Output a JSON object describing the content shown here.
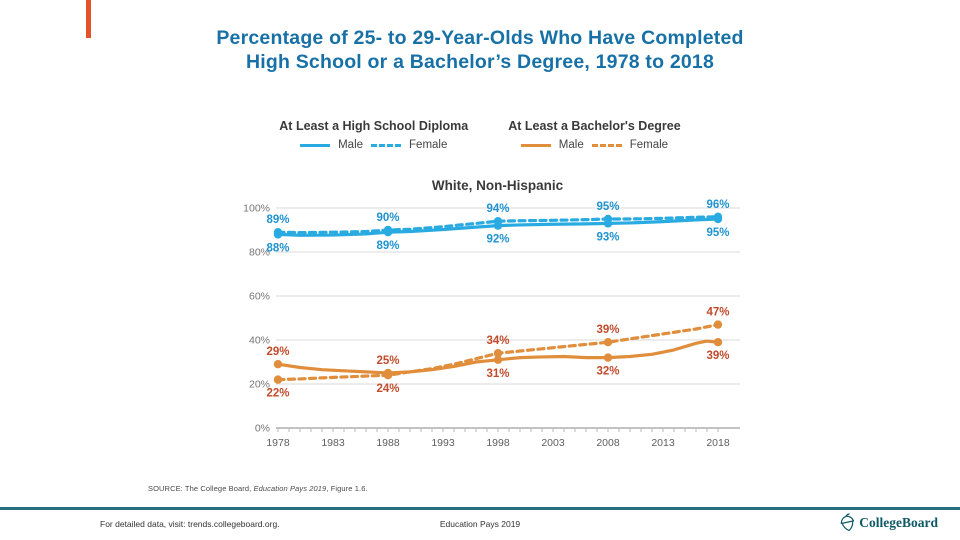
{
  "accent_color": "#E4512B",
  "title": {
    "line1": "Percentage of 25- to 29-Year-Olds Who Have Completed",
    "line2": "High School or a Bachelor’s Degree, 1978 to 2018",
    "color": "#1771A6"
  },
  "legend": {
    "groups": [
      {
        "title": "At Least a High School Diploma",
        "color": "#29ABE2",
        "items": [
          {
            "label": "Male",
            "style": "solid"
          },
          {
            "label": "Female",
            "style": "dashed"
          }
        ]
      },
      {
        "title": "At Least a Bachelor's Degree",
        "color": "#E08E3C",
        "items": [
          {
            "label": "Male",
            "style": "solid"
          },
          {
            "label": "Female",
            "style": "dashed"
          }
        ]
      }
    ]
  },
  "chart_data": {
    "type": "line",
    "title": "White, Non-Hispanic",
    "x_axis": {
      "min": 1978,
      "max": 2018,
      "tick_every": 1,
      "label_every": 5,
      "labels": [
        1978,
        1983,
        1988,
        1993,
        1998,
        2003,
        2008,
        2013,
        2018
      ]
    },
    "y_axis": {
      "min": 0,
      "max": 100,
      "gridlines": [
        100,
        80,
        60,
        40,
        20,
        0
      ],
      "tick_labels": [
        "100%",
        "80%",
        "60%",
        "40%",
        "20%",
        "0%"
      ]
    },
    "marker_years": [
      1978,
      1988,
      1998,
      2008,
      2018
    ],
    "series": [
      {
        "id": "hs-male",
        "name": "At Least a High School Diploma - Male",
        "color": "#29ABE2",
        "dash": false,
        "points": [
          [
            1978,
            88
          ],
          [
            1980,
            87.6
          ],
          [
            1983,
            87.7
          ],
          [
            1986,
            88.2
          ],
          [
            1988,
            89
          ],
          [
            1990,
            89.3
          ],
          [
            1993,
            90.2
          ],
          [
            1996,
            91.3
          ],
          [
            1998,
            92
          ],
          [
            2000,
            92.3
          ],
          [
            2003,
            92.6
          ],
          [
            2006,
            92.8
          ],
          [
            2008,
            93
          ],
          [
            2010,
            93.2
          ],
          [
            2013,
            93.8
          ],
          [
            2016,
            94.6
          ],
          [
            2018,
            95
          ]
        ]
      },
      {
        "id": "hs-female",
        "name": "At Least a High School Diploma - Female",
        "color": "#29ABE2",
        "dash": true,
        "points": [
          [
            1978,
            89
          ],
          [
            1980,
            88.8
          ],
          [
            1983,
            89
          ],
          [
            1986,
            89.3
          ],
          [
            1988,
            90
          ],
          [
            1990,
            90.3
          ],
          [
            1993,
            91.5
          ],
          [
            1996,
            93
          ],
          [
            1998,
            94
          ],
          [
            2000,
            94.2
          ],
          [
            2003,
            94.4
          ],
          [
            2006,
            94.7
          ],
          [
            2008,
            95
          ],
          [
            2010,
            95
          ],
          [
            2013,
            95.3
          ],
          [
            2016,
            95.8
          ],
          [
            2018,
            96
          ]
        ]
      },
      {
        "id": "ba-male",
        "name": "At Least a Bachelor's Degree - Male",
        "color": "#E08E3C",
        "dash": false,
        "points": [
          [
            1978,
            29
          ],
          [
            1980,
            27.5
          ],
          [
            1982,
            26.5
          ],
          [
            1984,
            26
          ],
          [
            1986,
            25.5
          ],
          [
            1988,
            25
          ],
          [
            1990,
            25.5
          ],
          [
            1992,
            26.5
          ],
          [
            1994,
            28
          ],
          [
            1996,
            30
          ],
          [
            1998,
            31
          ],
          [
            2000,
            32
          ],
          [
            2002,
            32.3
          ],
          [
            2004,
            32.5
          ],
          [
            2006,
            32
          ],
          [
            2008,
            32
          ],
          [
            2010,
            32.5
          ],
          [
            2012,
            33.5
          ],
          [
            2014,
            35.5
          ],
          [
            2016,
            38.5
          ],
          [
            2017,
            39.5
          ],
          [
            2018,
            39
          ]
        ]
      },
      {
        "id": "ba-female",
        "name": "At Least a Bachelor's Degree - Female",
        "color": "#E08E3C",
        "dash": true,
        "points": [
          [
            1978,
            22
          ],
          [
            1980,
            22.3
          ],
          [
            1982,
            22.8
          ],
          [
            1984,
            23.2
          ],
          [
            1986,
            23.6
          ],
          [
            1988,
            24
          ],
          [
            1990,
            25.5
          ],
          [
            1992,
            27
          ],
          [
            1994,
            29
          ],
          [
            1996,
            31.5
          ],
          [
            1998,
            34
          ],
          [
            2000,
            35
          ],
          [
            2002,
            36
          ],
          [
            2004,
            37
          ],
          [
            2006,
            38
          ],
          [
            2008,
            39
          ],
          [
            2010,
            40.5
          ],
          [
            2012,
            42
          ],
          [
            2014,
            43.5
          ],
          [
            2016,
            45
          ],
          [
            2018,
            47
          ]
        ]
      }
    ],
    "labels": [
      {
        "year": 1978,
        "value": 89,
        "text": "89%",
        "placement": "above",
        "color": "#1E93CF"
      },
      {
        "year": 1978,
        "value": 88,
        "text": "88%",
        "placement": "below",
        "color": "#1E93CF"
      },
      {
        "year": 1988,
        "value": 90,
        "text": "90%",
        "placement": "above",
        "color": "#1E93CF"
      },
      {
        "year": 1988,
        "value": 89,
        "text": "89%",
        "placement": "below",
        "color": "#1E93CF"
      },
      {
        "year": 1998,
        "value": 94,
        "text": "94%",
        "placement": "above",
        "color": "#1E93CF"
      },
      {
        "year": 1998,
        "value": 92,
        "text": "92%",
        "placement": "below",
        "color": "#1E93CF"
      },
      {
        "year": 2008,
        "value": 95,
        "text": "95%",
        "placement": "above",
        "color": "#1E93CF"
      },
      {
        "year": 2008,
        "value": 93,
        "text": "93%",
        "placement": "below",
        "color": "#1E93CF"
      },
      {
        "year": 2018,
        "value": 96,
        "text": "96%",
        "placement": "above",
        "color": "#1E93CF"
      },
      {
        "year": 2018,
        "value": 95,
        "text": "95%",
        "placement": "below",
        "color": "#1E93CF"
      },
      {
        "year": 1978,
        "value": 29,
        "text": "29%",
        "placement": "above",
        "color": "#C24B2C"
      },
      {
        "year": 1978,
        "value": 22,
        "text": "22%",
        "placement": "below",
        "color": "#C24B2C"
      },
      {
        "year": 1988,
        "value": 25,
        "text": "25%",
        "placement": "above",
        "color": "#C24B2C"
      },
      {
        "year": 1988,
        "value": 24,
        "text": "24%",
        "placement": "below",
        "color": "#C24B2C"
      },
      {
        "year": 1998,
        "value": 34,
        "text": "34%",
        "placement": "above",
        "color": "#C24B2C"
      },
      {
        "year": 1998,
        "value": 31,
        "text": "31%",
        "placement": "below",
        "color": "#C24B2C"
      },
      {
        "year": 2008,
        "value": 39,
        "text": "39%",
        "placement": "above",
        "color": "#C24B2C"
      },
      {
        "year": 2008,
        "value": 32,
        "text": "32%",
        "placement": "below",
        "color": "#C24B2C"
      },
      {
        "year": 2018,
        "value": 47,
        "text": "47%",
        "placement": "above",
        "color": "#C24B2C"
      },
      {
        "year": 2018,
        "value": 39,
        "text": "39%",
        "placement": "below",
        "color": "#C24B2C"
      }
    ]
  },
  "source": {
    "prefix": "SOURCE: The College Board, ",
    "italic": "Education Pays 2019",
    "suffix": ", Figure 1.6."
  },
  "footer": {
    "left": "For detailed data, visit: trends.collegeboard.org.",
    "center": "Education Pays 2019",
    "logo_text": "CollegeBoard",
    "line_color": "#266F7E",
    "logo_color": "#0F5966"
  }
}
